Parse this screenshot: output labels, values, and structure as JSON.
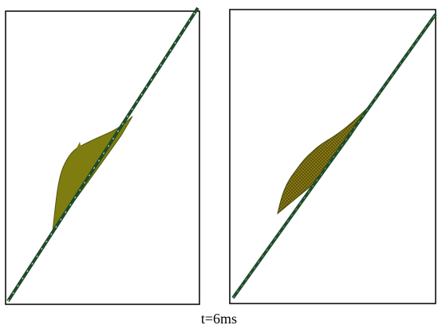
{
  "caption": "t=6ms"
}
